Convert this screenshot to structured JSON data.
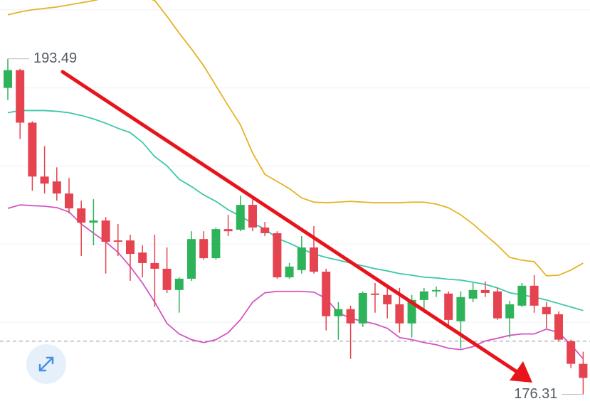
{
  "chart_data": {
    "type": "candlestick",
    "ylim": [
      175.2,
      196.5
    ],
    "grid_lines": [
      180,
      184,
      188,
      192,
      196
    ],
    "up_color": "#2fb35a",
    "down_color": "#e5434f",
    "open": [
      192.0,
      192.91,
      190.22,
      187.46,
      187.21,
      186.59,
      185.83,
      185.1,
      185.21,
      184.19,
      184.19,
      183.57,
      183.03,
      182.74,
      181.65,
      182.23,
      184.26,
      183.28,
      184.77,
      184.74,
      186.01,
      184.85,
      184.56,
      182.3,
      182.67,
      183.83,
      182.59,
      180.31,
      180.67,
      179.94,
      181.47,
      181.4,
      180.92,
      179.94,
      181.14,
      181.58,
      181.47,
      180.05,
      181.21,
      181.65,
      181.58,
      180.2,
      180.85,
      181.87,
      180.78,
      180.41,
      179.03,
      177.87
    ],
    "high": [
      193.49,
      192.98,
      190.29,
      189.02,
      187.93,
      187.39,
      186.23,
      186.3,
      185.39,
      185.03,
      184.48,
      183.94,
      184.48,
      183.83,
      182.3,
      184.66,
      184.66,
      184.85,
      185.5,
      186.48,
      186.3,
      185.14,
      184.66,
      183.03,
      184.41,
      184.92,
      182.74,
      181.03,
      180.85,
      181.58,
      182.01,
      181.94,
      181.76,
      181.4,
      181.76,
      181.83,
      181.58,
      181.58,
      182.01,
      182.09,
      181.76,
      181.1,
      182.01,
      182.41,
      181.03,
      180.56,
      179.11,
      178.49
    ],
    "low": [
      191.38,
      189.39,
      186.73,
      186.59,
      186.23,
      185.57,
      183.39,
      183.94,
      182.49,
      183.39,
      182.12,
      182.3,
      180.78,
      181.5,
      180.49,
      182.12,
      183.21,
      183.21,
      184.41,
      184.66,
      184.66,
      184.41,
      182.23,
      182.23,
      182.49,
      182.49,
      179.58,
      179.11,
      178.13,
      179.76,
      180.49,
      180.2,
      179.47,
      179.22,
      180.49,
      181.29,
      179.69,
      178.67,
      181.03,
      181.29,
      180.12,
      179.22,
      180.78,
      180.49,
      179.69,
      179.03,
      177.65,
      176.31
    ],
    "close": [
      192.91,
      190.22,
      187.46,
      187.1,
      186.59,
      185.83,
      185.1,
      185.21,
      184.12,
      184.12,
      183.5,
      183.03,
      182.74,
      181.65,
      182.23,
      184.26,
      183.28,
      184.77,
      184.66,
      186.01,
      184.85,
      184.56,
      182.3,
      182.85,
      183.83,
      182.59,
      180.31,
      180.67,
      179.94,
      181.5,
      181.4,
      180.92,
      179.94,
      181.14,
      181.58,
      181.65,
      180.12,
      181.29,
      181.65,
      181.5,
      180.2,
      180.92,
      181.87,
      180.85,
      180.41,
      179.11,
      177.87,
      177.15
    ],
    "bands": [
      {
        "color": "#e6b325",
        "values": [
          195.74,
          195.89,
          196.0,
          196.07,
          196.14,
          196.25,
          196.36,
          196.47,
          196.62,
          196.72,
          196.76,
          196.69,
          196.47,
          195.67,
          194.8,
          194.0,
          193.13,
          192.11,
          191.09,
          190.11,
          188.66,
          187.57,
          187.21,
          186.84,
          186.37,
          186.15,
          186.12,
          186.15,
          186.19,
          186.15,
          186.12,
          186.12,
          186.12,
          186.15,
          186.15,
          186.05,
          185.86,
          185.5,
          185.03,
          184.48,
          183.94,
          183.32,
          183.18,
          183.1,
          182.38,
          182.41,
          182.67,
          183.03
        ]
      },
      {
        "color": "#3cc8a8",
        "values": [
          190.73,
          190.84,
          190.84,
          190.84,
          190.8,
          190.73,
          190.59,
          190.41,
          190.19,
          189.93,
          189.71,
          189.21,
          188.48,
          188.01,
          187.32,
          186.95,
          186.52,
          186.19,
          185.76,
          185.43,
          185.07,
          184.78,
          184.3,
          184.05,
          183.76,
          183.5,
          183.32,
          183.18,
          183.03,
          182.89,
          182.74,
          182.63,
          182.49,
          182.41,
          182.31,
          182.27,
          182.2,
          182.16,
          182.05,
          181.94,
          181.76,
          181.51,
          181.4,
          181.29,
          181.14,
          180.96,
          180.78,
          180.6
        ]
      },
      {
        "color": "#d454c4",
        "values": [
          185.83,
          186.01,
          185.97,
          185.94,
          185.87,
          185.65,
          185.03,
          184.56,
          184.12,
          183.58,
          182.85,
          182.01,
          181.03,
          179.94,
          179.4,
          179.11,
          178.96,
          179.11,
          179.47,
          180.13,
          181.03,
          181.51,
          181.58,
          181.58,
          181.58,
          181.54,
          181.22,
          180.49,
          180.2,
          180.05,
          179.91,
          179.69,
          179.22,
          179.11,
          178.96,
          178.85,
          178.67,
          178.6,
          178.75,
          179.04,
          179.18,
          179.33,
          179.4,
          179.4,
          179.65,
          179.47,
          178.85,
          178.13
        ]
      }
    ],
    "reference_line": 179.03,
    "high_label": 193.49,
    "low_label": 176.31
  }
}
